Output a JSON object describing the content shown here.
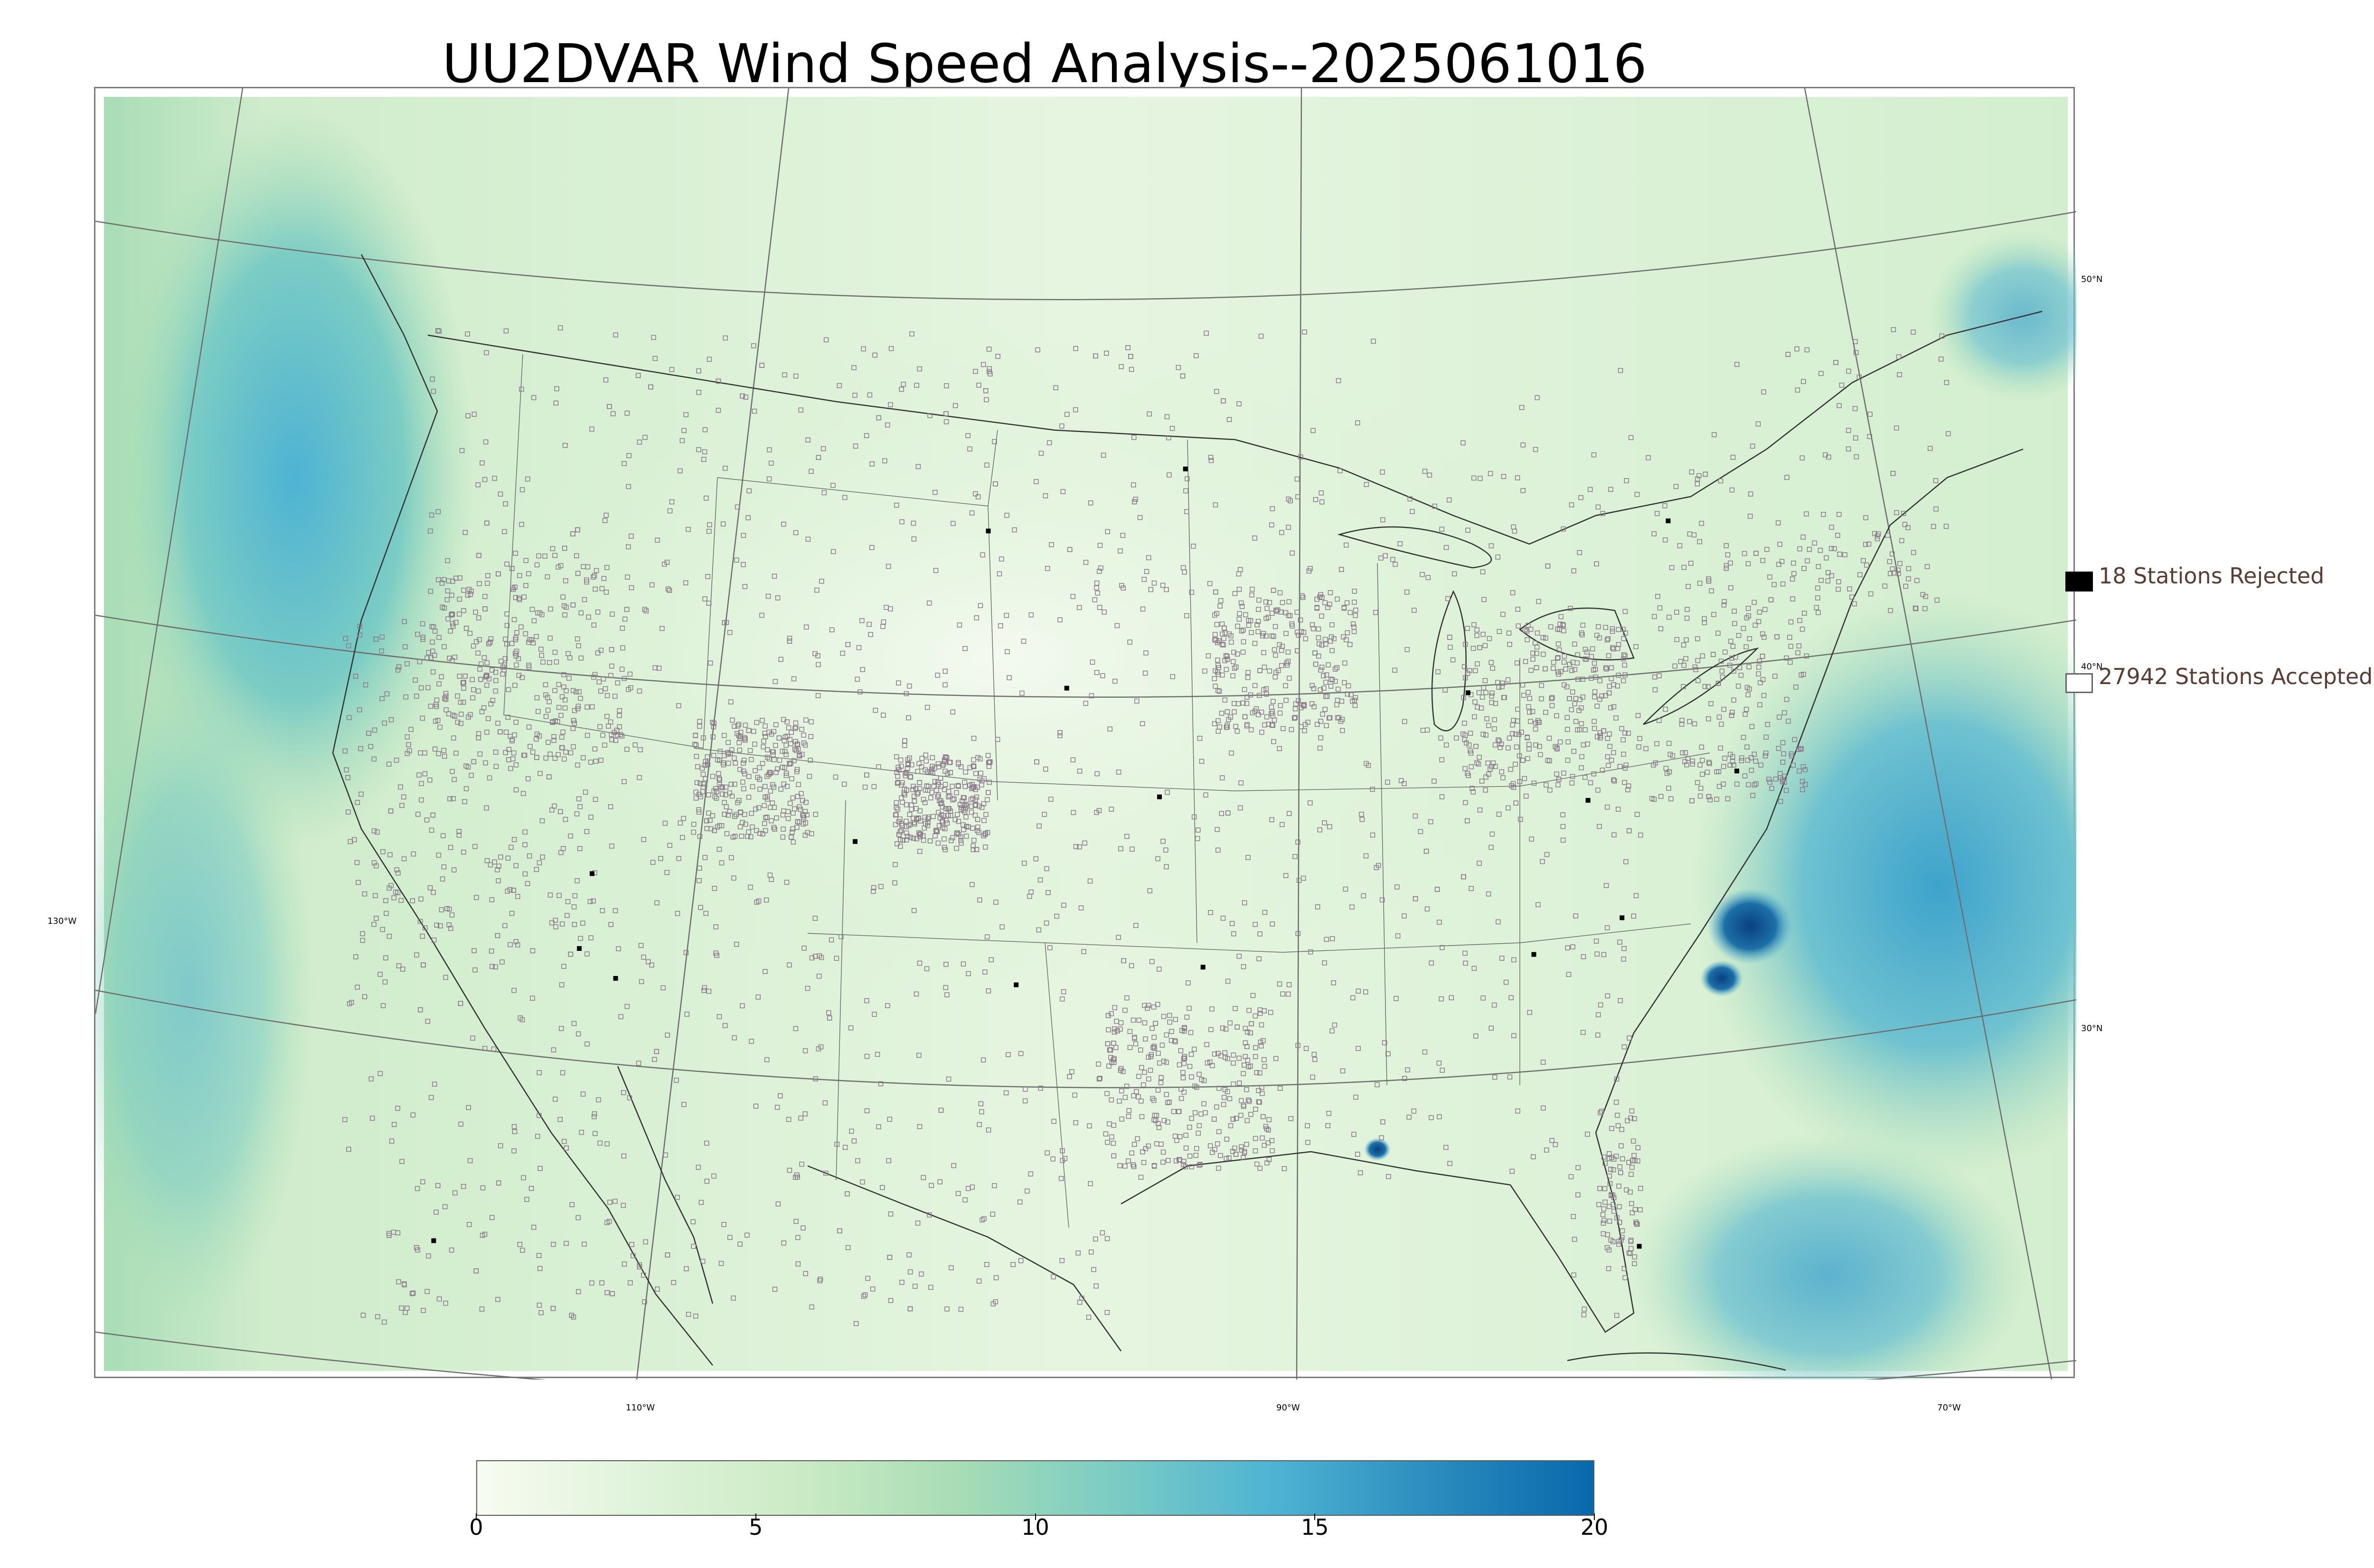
{
  "title": "UU2DVAR Wind Speed Analysis--2025061016",
  "graticule": {
    "lat_labels": [
      "50°N",
      "40°N",
      "30°N"
    ],
    "lon_labels": [
      "130°W",
      "110°W",
      "90°W",
      "70°W"
    ]
  },
  "legend": {
    "rejected": {
      "label": "18 Stations Rejected",
      "color": "#000000"
    },
    "accepted": {
      "label": "27942 Stations Accepted",
      "color": "#ffffff"
    }
  },
  "colorbar": {
    "min": 0,
    "max": 20,
    "ticks": [
      "0",
      "5",
      "10",
      "15",
      "20"
    ],
    "colors": [
      "#f7fcf0",
      "#e0f3db",
      "#ccebc5",
      "#a8ddb5",
      "#7bccc4",
      "#4eb3d3",
      "#2b8cbe",
      "#0868ac"
    ]
  },
  "colors": {
    "ocean_high": "#4eb3d3",
    "ocean_max": "#105a96",
    "land": "#e3f4dd",
    "station_marker": "#8a7a8a"
  }
}
